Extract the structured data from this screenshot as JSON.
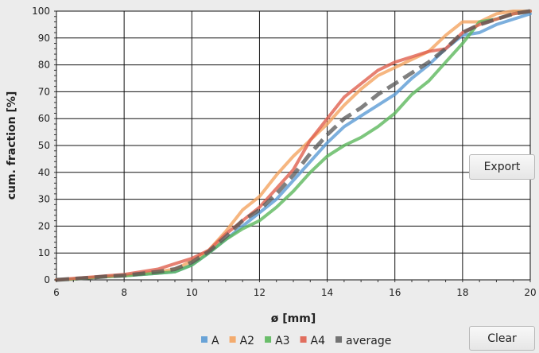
{
  "buttons": {
    "export_label": "Export",
    "clear_label": "Clear"
  },
  "chart_data": {
    "type": "line",
    "title": "",
    "xlabel": "ø [mm]",
    "ylabel": "cum. fraction [%]",
    "xlim": [
      6,
      20
    ],
    "ylim": [
      0,
      100
    ],
    "xticks": [
      "6",
      "8",
      "10",
      "12",
      "14",
      "16",
      "18",
      "20"
    ],
    "yticks": [
      "0",
      "10",
      "20",
      "30",
      "40",
      "50",
      "60",
      "70",
      "80",
      "90",
      "100"
    ],
    "grid": true,
    "legend_position": "bottom",
    "series": [
      {
        "name": "A",
        "color": "#5b9bd5",
        "dash": false,
        "x": [
          6,
          6.5,
          7,
          7.5,
          8,
          8.5,
          9,
          9.5,
          10,
          10.5,
          11,
          11.5,
          12,
          12.5,
          13,
          13.5,
          14,
          14.5,
          15,
          15.5,
          16,
          16.5,
          17,
          17.5,
          18,
          18.5,
          19,
          19.5,
          20
        ],
        "y": [
          0,
          0.3,
          0.8,
          1.2,
          1.5,
          2,
          2.5,
          3,
          5.5,
          10,
          15,
          20,
          25,
          30,
          37,
          44,
          51,
          57,
          61,
          65,
          69,
          75,
          80,
          86,
          91,
          92,
          95,
          97,
          99
        ]
      },
      {
        "name": "A2",
        "color": "#f4a460",
        "dash": false,
        "x": [
          6,
          6.5,
          7,
          7.5,
          8,
          8.5,
          9,
          9.5,
          10,
          10.5,
          11,
          11.5,
          12,
          12.5,
          13,
          13.5,
          14,
          14.5,
          15,
          15.5,
          16,
          16.5,
          17,
          17.5,
          18,
          18.5,
          19,
          19.5,
          20
        ],
        "y": [
          0,
          0.3,
          0.8,
          1.2,
          1.5,
          2.3,
          3,
          4,
          7,
          11,
          18,
          26,
          31,
          39,
          46,
          52,
          58,
          65,
          71,
          76,
          79,
          82,
          85,
          91,
          96,
          96,
          99,
          100,
          100
        ]
      },
      {
        "name": "A3",
        "color": "#5cb85c",
        "dash": false,
        "x": [
          6,
          6.5,
          7,
          7.5,
          8,
          8.5,
          9,
          9.5,
          10,
          10.5,
          11,
          11.5,
          12,
          12.5,
          13,
          13.5,
          14,
          14.5,
          15,
          15.5,
          16,
          16.5,
          17,
          17.5,
          18,
          18.5,
          19,
          19.5,
          20
        ],
        "y": [
          0,
          0.3,
          0.8,
          1.2,
          1.5,
          2,
          2.5,
          3,
          5.5,
          10,
          15,
          19,
          22,
          27,
          33,
          40,
          46,
          50,
          53,
          57,
          62,
          69,
          74,
          81,
          88,
          96,
          97,
          99,
          100
        ]
      },
      {
        "name": "A4",
        "color": "#e0604f",
        "dash": false,
        "x": [
          6,
          6.5,
          7,
          7.5,
          8,
          8.5,
          9,
          9.5,
          10,
          10.5,
          11,
          11.5,
          12,
          12.5,
          13,
          13.5,
          14,
          14.5,
          15,
          15.5,
          16,
          16.5,
          17,
          17.5,
          18,
          18.5,
          19,
          19.5,
          20
        ],
        "y": [
          0,
          0.5,
          1,
          1.5,
          2,
          3,
          4,
          6,
          8,
          11,
          17,
          22,
          27,
          34,
          41,
          52,
          60,
          68,
          73,
          78,
          81,
          83,
          85,
          86,
          92,
          95,
          97,
          99,
          100
        ]
      },
      {
        "name": "average",
        "color": "#555555",
        "dash": true,
        "x": [
          6,
          6.5,
          7,
          7.5,
          8,
          8.5,
          9,
          9.5,
          10,
          10.5,
          11,
          11.5,
          12,
          12.5,
          13,
          13.5,
          14,
          14.5,
          15,
          15.5,
          16,
          16.5,
          17,
          17.5,
          18,
          18.5,
          19,
          19.5,
          20
        ],
        "y": [
          0,
          0.4,
          0.8,
          1.3,
          1.6,
          2.3,
          3,
          4,
          6.5,
          10.5,
          16,
          22,
          26,
          32,
          39,
          47,
          54,
          60,
          64,
          69,
          73,
          77,
          81,
          86,
          92,
          95,
          97,
          99,
          100
        ]
      }
    ]
  }
}
